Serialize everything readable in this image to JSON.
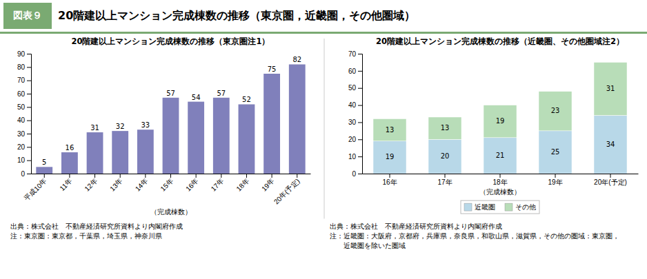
{
  "title": "20階建以上マンション完成棟数の推移（東京圏，近畿圏，その他圏域）",
  "annotations": [
    "図表９"
  ],
  "color": "#7aaa72",
  "chart_data": [
    {
      "type": "bar",
      "title": "20階建以上マンション完成棟数の推移（東京圏注1）",
      "xlabel": "（完成棟数）",
      "categories": [
        "平成10年",
        "11年",
        "12年",
        "13年",
        "14年",
        "15年",
        "16年",
        "17年",
        "18年",
        "19年",
        "20年(予定)"
      ],
      "values": [
        5,
        16,
        31,
        32,
        33,
        57,
        54,
        57,
        52,
        75,
        82
      ],
      "color": "#8080bb",
      "ylim": [
        0,
        90
      ],
      "yticks": [
        0,
        10,
        20,
        30,
        40,
        50,
        60,
        70,
        80,
        90
      ],
      "grid": false,
      "data_labels": true,
      "annotations": [
        "出典：株式会社　不動産経済研究所資料より内閣府作成",
        "注：東京圏：東京都，千葉県，埼玉県，神奈川県"
      ]
    },
    {
      "type": "bar",
      "title": "20階建以上マンション完成棟数の推移（近畿圏、その他圏域注2）",
      "xlabel": "（完成棟数）",
      "categories": [
        "16年",
        "17年",
        "18年",
        "19年",
        "20年(予定)"
      ],
      "series": [
        {
          "name": "近畿圏",
          "color": "#b8d8e8",
          "values": [
            19,
            20,
            21,
            25,
            34
          ]
        },
        {
          "name": "その他",
          "color": "#b8ddb8",
          "values": [
            13,
            13,
            19,
            23,
            31
          ]
        }
      ],
      "stacked": true,
      "ylim": [
        0,
        70
      ],
      "yticks": [
        0,
        10,
        20,
        30,
        40,
        50,
        60,
        70
      ],
      "grid": false,
      "legend": "bottom",
      "data_labels": true,
      "annotations": [
        "出典：株式会社　不動産経済研究所資料より内閣府作成",
        "注：近畿圏：大阪府，京都府，兵庫県，奈良県，和歌山県，滋賀県，その他の圏域：東京圏，",
        "　　近畿圏を除いた圏域"
      ]
    }
  ]
}
